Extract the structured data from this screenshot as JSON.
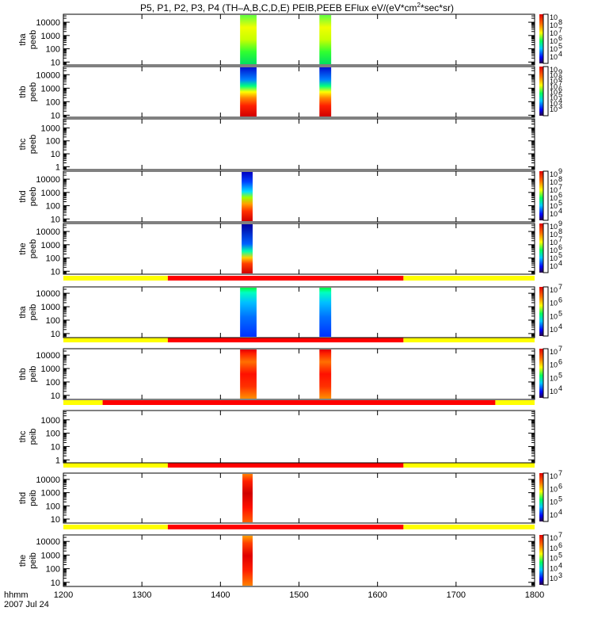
{
  "chart_data": {
    "type": "heatmap",
    "title": "P5, P1, P2, P3, P4 (TH–A,B,C,D,E) PEIB,PEEB EFlux eV/(eV*cm",
    "title_sup": "2",
    "title_suffix": "*sec*sr)",
    "x_ticks": [
      "1200",
      "1300",
      "1400",
      "1500",
      "1600",
      "1700",
      "1800"
    ],
    "xlim": [
      1200,
      1800
    ],
    "x_label_line1": "hhmm",
    "x_label_line2": "2007 Jul 24",
    "panels": [
      {
        "probe": "tha",
        "instrument": "peeb",
        "y_ticks": [
          "10",
          "100",
          "1000",
          "10000"
        ],
        "ylim": [
          6,
          40000
        ],
        "log": true,
        "colorbar_ticks": [
          "10",
          "10",
          "10",
          "10",
          "10",
          "10"
        ],
        "colorbar_exps": [
          "4",
          "5",
          "6",
          "7",
          "8",
          ""
        ],
        "has_colorbar": true,
        "data_blocks": [
          {
            "start": 1425,
            "end": 1446,
            "profile": "green-yellow"
          },
          {
            "start": 1526,
            "end": 1541,
            "profile": "green-yellow"
          }
        ],
        "quality_bar": null
      },
      {
        "probe": "thb",
        "instrument": "peeb",
        "y_ticks": [
          "10",
          "100",
          "1000",
          "10000"
        ],
        "ylim": [
          7,
          40000
        ],
        "log": true,
        "colorbar_ticks": [
          "10",
          "10",
          "10",
          "10",
          "10",
          "10",
          "10",
          "10"
        ],
        "colorbar_exps": [
          "3",
          "4",
          "5",
          "6",
          "7",
          "8",
          "9",
          ""
        ],
        "has_colorbar": true,
        "data_blocks": [
          {
            "start": 1425,
            "end": 1446,
            "profile": "blue-red"
          },
          {
            "start": 1526,
            "end": 1541,
            "profile": "blue-red"
          }
        ],
        "quality_bar": null
      },
      {
        "probe": "thc",
        "instrument": "peeb",
        "y_ticks": [
          "1",
          "10",
          "100",
          "1000"
        ],
        "ylim": [
          0.6,
          5000
        ],
        "log": true,
        "has_colorbar": false,
        "data_blocks": [],
        "quality_bar": null
      },
      {
        "probe": "thd",
        "instrument": "peeb",
        "y_ticks": [
          "10",
          "100",
          "1000",
          "10000"
        ],
        "ylim": [
          6,
          40000
        ],
        "log": true,
        "colorbar_ticks": [
          "10",
          "10",
          "10",
          "10",
          "10",
          "10"
        ],
        "colorbar_exps": [
          "4",
          "5",
          "6",
          "7",
          "8",
          "9"
        ],
        "has_colorbar": true,
        "data_blocks": [
          {
            "start": 1427,
            "end": 1441,
            "profile": "blue-red-d"
          }
        ],
        "quality_bar": null
      },
      {
        "probe": "the",
        "instrument": "peeb",
        "y_ticks": [
          "10",
          "100",
          "1000",
          "10000"
        ],
        "ylim": [
          6,
          40000
        ],
        "log": true,
        "colorbar_ticks": [
          "10",
          "10",
          "10",
          "10",
          "10",
          "10"
        ],
        "colorbar_exps": [
          "4",
          "5",
          "6",
          "7",
          "8",
          "9"
        ],
        "has_colorbar": true,
        "data_blocks": [
          {
            "start": 1427,
            "end": 1441,
            "profile": "blue-red-e"
          }
        ],
        "quality_bar": {
          "segments": [
            {
              "start": 1200,
              "end": 1333,
              "color": "#ffff00"
            },
            {
              "start": 1333,
              "end": 1633,
              "color": "#ff0000"
            },
            {
              "start": 1633,
              "end": 1800,
              "color": "#ffff00"
            }
          ]
        }
      },
      {
        "probe": "tha",
        "instrument": "peib",
        "y_ticks": [
          "10",
          "100",
          "1000",
          "10000"
        ],
        "ylim": [
          5,
          30000
        ],
        "log": true,
        "colorbar_ticks": [
          "10",
          "10",
          "10",
          "10"
        ],
        "colorbar_exps": [
          "4",
          "5",
          "6",
          "7"
        ],
        "has_colorbar": true,
        "data_blocks": [
          {
            "start": 1425,
            "end": 1446,
            "profile": "ion-a"
          },
          {
            "start": 1526,
            "end": 1541,
            "profile": "ion-a"
          }
        ],
        "quality_bar": {
          "segments": [
            {
              "start": 1200,
              "end": 1333,
              "color": "#ffff00"
            },
            {
              "start": 1333,
              "end": 1633,
              "color": "#ff0000"
            },
            {
              "start": 1633,
              "end": 1800,
              "color": "#ffff00"
            }
          ]
        }
      },
      {
        "probe": "thb",
        "instrument": "peib",
        "y_ticks": [
          "10",
          "100",
          "1000",
          "10000"
        ],
        "ylim": [
          5,
          30000
        ],
        "log": true,
        "colorbar_ticks": [
          "10",
          "10",
          "10",
          "10"
        ],
        "colorbar_exps": [
          "4",
          "5",
          "6",
          "7"
        ],
        "has_colorbar": true,
        "data_blocks": [
          {
            "start": 1425,
            "end": 1446,
            "profile": "ion-b"
          },
          {
            "start": 1526,
            "end": 1541,
            "profile": "ion-b"
          }
        ],
        "quality_bar": {
          "segments": [
            {
              "start": 1200,
              "end": 1250,
              "color": "#ffff00"
            },
            {
              "start": 1250,
              "end": 1750,
              "color": "#ff0000"
            },
            {
              "start": 1750,
              "end": 1800,
              "color": "#ffff00"
            }
          ]
        }
      },
      {
        "probe": "thc",
        "instrument": "peib",
        "y_ticks": [
          "1",
          "10",
          "100",
          "1000"
        ],
        "ylim": [
          0.6,
          5000
        ],
        "log": true,
        "has_colorbar": false,
        "data_blocks": [],
        "quality_bar": {
          "segments": [
            {
              "start": 1200,
              "end": 1333,
              "color": "#ffff00"
            },
            {
              "start": 1333,
              "end": 1633,
              "color": "#ff0000"
            },
            {
              "start": 1633,
              "end": 1800,
              "color": "#ffff00"
            }
          ]
        }
      },
      {
        "probe": "thd",
        "instrument": "peib",
        "y_ticks": [
          "10",
          "100",
          "1000",
          "10000"
        ],
        "ylim": [
          5,
          30000
        ],
        "log": true,
        "colorbar_ticks": [
          "10",
          "10",
          "10",
          "10"
        ],
        "colorbar_exps": [
          "4",
          "5",
          "6",
          "7"
        ],
        "has_colorbar": true,
        "data_blocks": [
          {
            "start": 1428,
            "end": 1441,
            "profile": "ion-d"
          }
        ],
        "quality_bar": {
          "segments": [
            {
              "start": 1200,
              "end": 1333,
              "color": "#ffff00"
            },
            {
              "start": 1333,
              "end": 1633,
              "color": "#ff0000"
            },
            {
              "start": 1633,
              "end": 1800,
              "color": "#ffff00"
            }
          ]
        }
      },
      {
        "probe": "the",
        "instrument": "peib",
        "y_ticks": [
          "10",
          "100",
          "1000",
          "10000"
        ],
        "ylim": [
          5,
          30000
        ],
        "log": true,
        "colorbar_ticks": [
          "10",
          "10",
          "10",
          "10",
          "10"
        ],
        "colorbar_exps": [
          "3",
          "4",
          "5",
          "6",
          "7"
        ],
        "has_colorbar": true,
        "data_blocks": [
          {
            "start": 1428,
            "end": 1441,
            "profile": "ion-e"
          }
        ],
        "quality_bar": null
      }
    ]
  }
}
